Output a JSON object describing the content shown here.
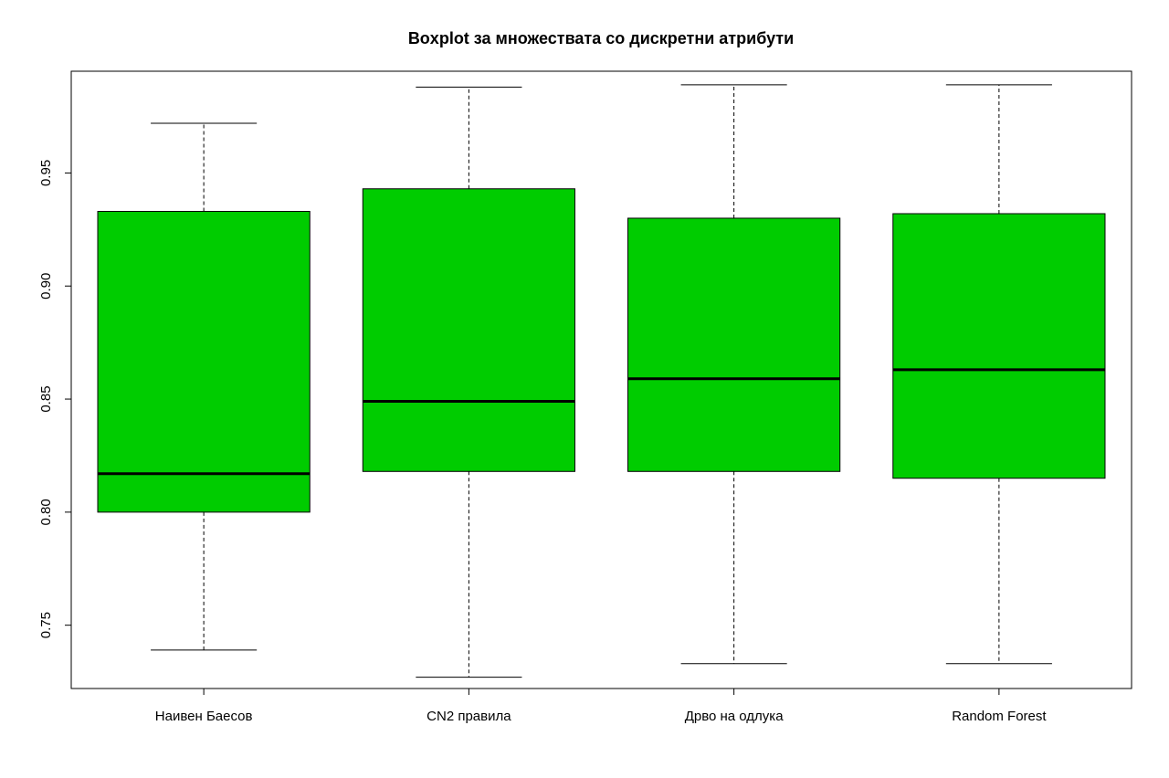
{
  "chart_data": {
    "type": "boxplot",
    "title": "Boxplot за множествата со дискретни атрибути",
    "xlabel": "",
    "ylabel": "",
    "ylim": [
      0.722,
      0.995
    ],
    "yticks": [
      0.75,
      0.8,
      0.85,
      0.9,
      0.95
    ],
    "ytick_labels": [
      "0.75",
      "0.80",
      "0.85",
      "0.90",
      "0.95"
    ],
    "grid": false,
    "box_color": "#00cc00",
    "categories": [
      "Наивен Баесов",
      "CN2 правила",
      "Дрво на одлука",
      "Random Forest"
    ],
    "boxes": [
      {
        "category": "Наивен Баесов",
        "min": 0.739,
        "q1": 0.8,
        "median": 0.817,
        "q3": 0.933,
        "max": 0.972
      },
      {
        "category": "CN2 правила",
        "min": 0.727,
        "q1": 0.818,
        "median": 0.849,
        "q3": 0.943,
        "max": 0.988
      },
      {
        "category": "Дрво на одлука",
        "min": 0.733,
        "q1": 0.818,
        "median": 0.859,
        "q3": 0.93,
        "max": 0.989
      },
      {
        "category": "Random Forest",
        "min": 0.733,
        "q1": 0.815,
        "median": 0.863,
        "q3": 0.932,
        "max": 0.989
      }
    ]
  }
}
